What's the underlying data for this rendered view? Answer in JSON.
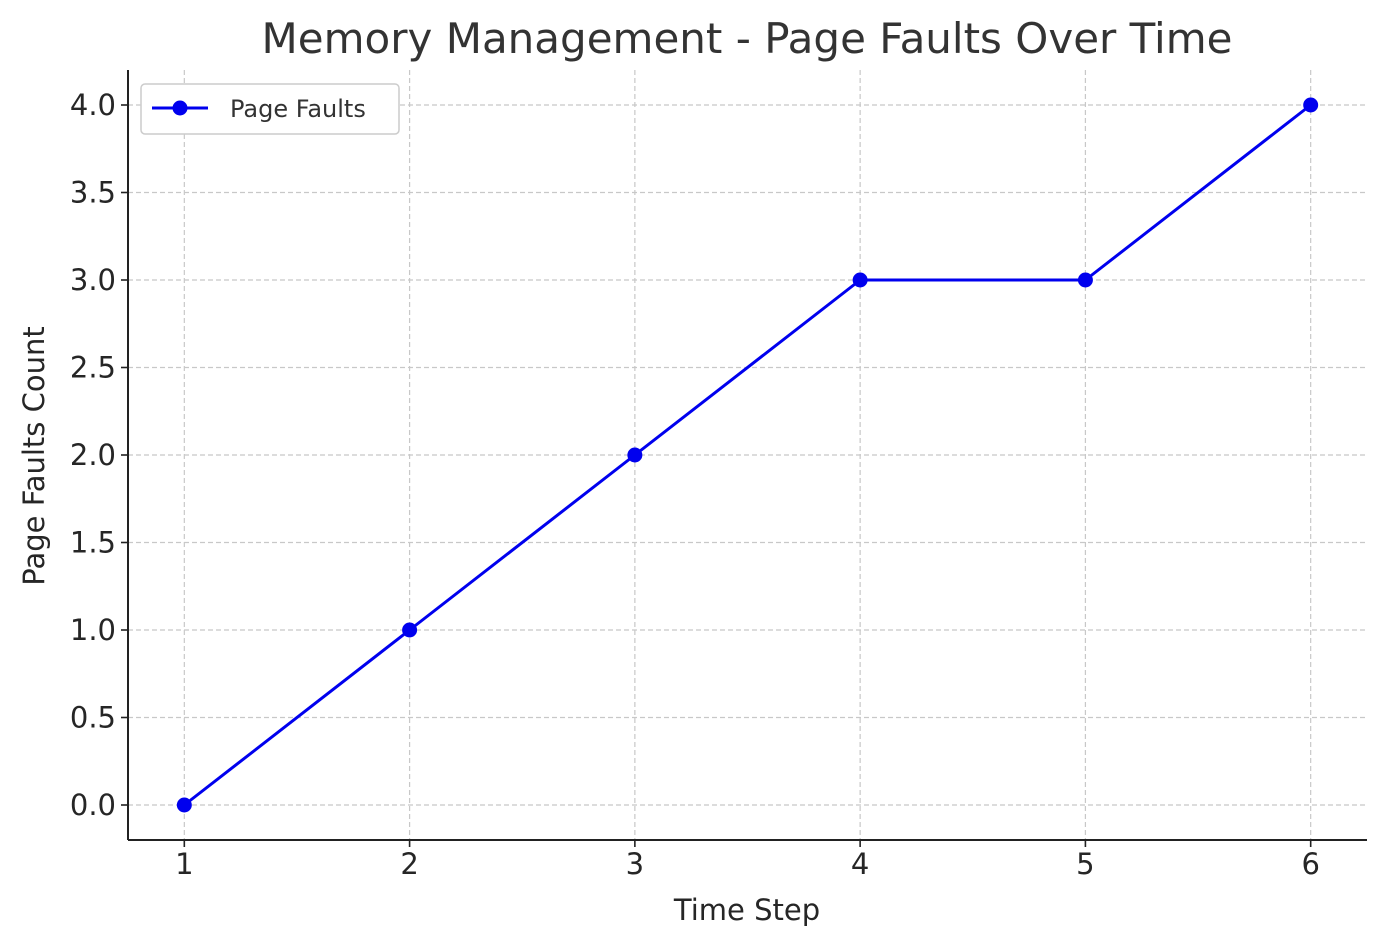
{
  "chart_data": {
    "type": "line",
    "title": "Memory Management - Page Faults Over Time",
    "xlabel": "Time Step",
    "ylabel": "Page Faults Count",
    "x": [
      1,
      2,
      3,
      4,
      5,
      6
    ],
    "series": [
      {
        "name": "Page Faults",
        "values": [
          0,
          1,
          2,
          3,
          3,
          4
        ],
        "color": "#0000ee",
        "marker": "circle"
      }
    ],
    "xticks": [
      "1",
      "2",
      "3",
      "4",
      "5",
      "6"
    ],
    "yticks": [
      "0.0",
      "0.5",
      "1.0",
      "1.5",
      "2.0",
      "2.5",
      "3.0",
      "3.5",
      "4.0"
    ],
    "xlim": [
      0.75,
      6.25
    ],
    "ylim": [
      -0.2,
      4.2
    ],
    "grid": true,
    "legend_position": "top-left"
  }
}
